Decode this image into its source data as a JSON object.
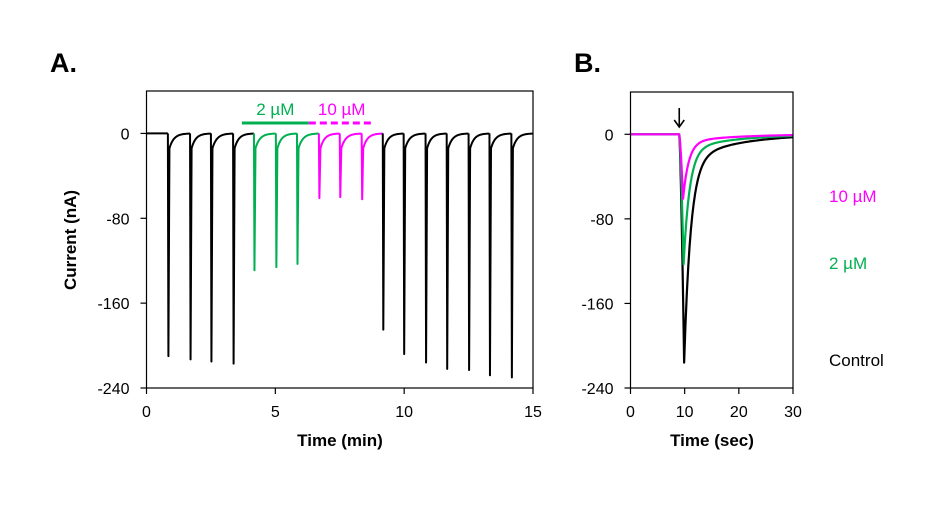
{
  "colors": {
    "control": "#000000",
    "low_dose": "#00B050",
    "high_dose": "#FF00FF"
  },
  "chart_data": [
    {
      "id": "A",
      "panel_label": "A.",
      "type": "line",
      "title": "",
      "xlabel": "Time (min)",
      "ylabel": "Current (nA)",
      "xlim": [
        0,
        15
      ],
      "ylim": [
        -240,
        40
      ],
      "xticks": [
        0,
        5,
        10,
        15
      ],
      "yticks": [
        0,
        -80,
        -160,
        -240
      ],
      "xtick_labels": [
        "0",
        "5",
        "10",
        "15"
      ],
      "ytick_labels": [
        "0",
        "-80",
        "-160",
        "-240"
      ],
      "grid": false,
      "baseline": 0,
      "pulses": [
        {
          "t": 0.83,
          "peak": -210,
          "condition": "control"
        },
        {
          "t": 1.69,
          "peak": -213,
          "condition": "control"
        },
        {
          "t": 2.5,
          "peak": -215,
          "condition": "control"
        },
        {
          "t": 3.36,
          "peak": -217,
          "condition": "control"
        },
        {
          "t": 4.17,
          "peak": -129,
          "condition": "2uM"
        },
        {
          "t": 5.02,
          "peak": -126,
          "condition": "2uM"
        },
        {
          "t": 5.84,
          "peak": -123,
          "condition": "2uM"
        },
        {
          "t": 6.69,
          "peak": -61,
          "condition": "10uM"
        },
        {
          "t": 7.5,
          "peak": -60,
          "condition": "10uM"
        },
        {
          "t": 8.35,
          "peak": -62,
          "condition": "10uM"
        },
        {
          "t": 9.17,
          "peak": -185,
          "condition": "control"
        },
        {
          "t": 9.98,
          "peak": -208,
          "condition": "control"
        },
        {
          "t": 10.83,
          "peak": -216,
          "condition": "control"
        },
        {
          "t": 11.65,
          "peak": -222,
          "condition": "control"
        },
        {
          "t": 12.5,
          "peak": -223,
          "condition": "control"
        },
        {
          "t": 13.31,
          "peak": -228,
          "condition": "control"
        },
        {
          "t": 14.16,
          "peak": -230,
          "condition": "control"
        }
      ],
      "drug_bars": [
        {
          "label": "2 µM",
          "start": 3.7,
          "end": 6.3,
          "style": "solid",
          "condition": "2uM"
        },
        {
          "label": "10 µM",
          "start": 6.3,
          "end": 8.85,
          "style": "dashed",
          "condition": "10uM"
        }
      ]
    },
    {
      "id": "B",
      "panel_label": "B.",
      "type": "line",
      "title": "",
      "xlabel": "Time (sec)",
      "ylabel": "",
      "xlim": [
        0,
        30
      ],
      "ylim": [
        -240,
        40
      ],
      "xticks": [
        0,
        10,
        20,
        30
      ],
      "yticks": [
        0,
        -80,
        -160,
        -240
      ],
      "xtick_labels": [
        "0",
        "10",
        "20",
        "30"
      ],
      "ytick_labels": [
        "0",
        "-80",
        "-160",
        "-240"
      ],
      "grid": false,
      "stimulus_arrow_t": 9,
      "series": [
        {
          "name": "Control",
          "condition": "control",
          "onset": 9.0,
          "peak_t": 9.9,
          "peak": -216,
          "tau": 2.2
        },
        {
          "name": "2 µM",
          "condition": "2uM",
          "onset": 9.0,
          "peak_t": 9.8,
          "peak": -123,
          "tau": 2.0
        },
        {
          "name": "10 µM",
          "condition": "10uM",
          "onset": 9.0,
          "peak_t": 9.7,
          "peak": -61,
          "tau": 1.9
        }
      ],
      "legend": [
        {
          "label": "10 µM",
          "condition": "10uM"
        },
        {
          "label": "2 µM",
          "condition": "2uM"
        },
        {
          "label": "Control",
          "condition": "control"
        }
      ],
      "legend_placement": "right"
    }
  ]
}
